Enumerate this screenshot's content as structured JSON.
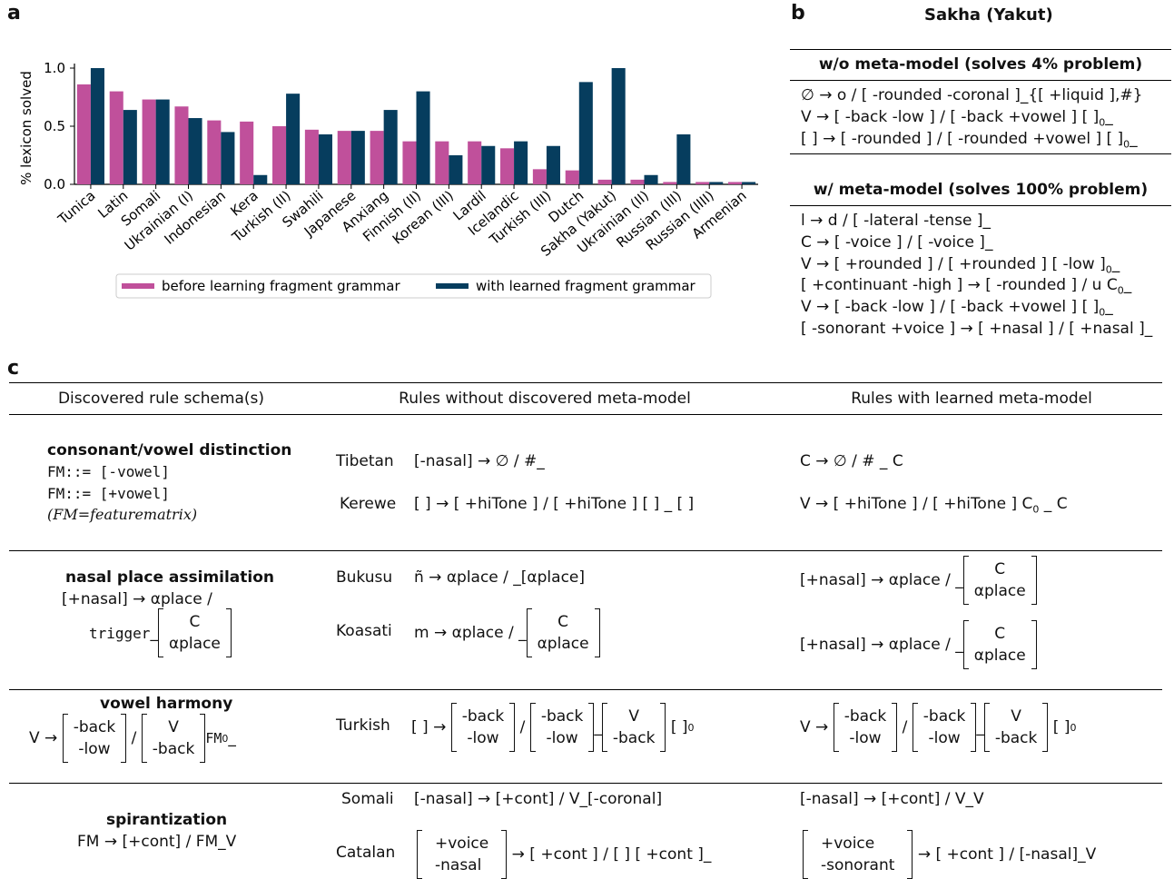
{
  "panel_a": {
    "label": "a",
    "chart_data": {
      "type": "bar",
      "ylabel": "% lexicon solved",
      "ylim": [
        0,
        1.0
      ],
      "yticks": [
        "0.0",
        "0.5",
        "1.0"
      ],
      "categories": [
        "Tunica",
        "Latin",
        "Somali",
        "Ukrainian (I)",
        "Indonesian",
        "Kera",
        "Turkish (II)",
        "Swahili",
        "Japanese",
        "Anxiang",
        "Finnish (II)",
        "Korean (III)",
        "Lardil",
        "Icelandic",
        "Turkish (III)",
        "Dutch",
        "Sakha (Yakut)",
        "Ukrainian (II)",
        "Russian (III)",
        "Russian (IIII)",
        "Armenian"
      ],
      "series": [
        {
          "name": "before learning fragment grammar",
          "color": "#c0509b",
          "values": [
            0.86,
            0.8,
            0.73,
            0.67,
            0.55,
            0.54,
            0.5,
            0.47,
            0.46,
            0.46,
            0.37,
            0.37,
            0.37,
            0.31,
            0.13,
            0.12,
            0.04,
            0.04,
            0.02,
            0.02,
            0.02
          ]
        },
        {
          "name": "with learned fragment grammar",
          "color": "#063d5e",
          "values": [
            1.0,
            0.64,
            0.73,
            0.57,
            0.45,
            0.08,
            0.78,
            0.43,
            0.46,
            0.64,
            0.8,
            0.25,
            0.33,
            0.37,
            0.33,
            0.88,
            1.0,
            0.08,
            0.43,
            0.02,
            0.02
          ]
        }
      ],
      "legend": "bottom"
    }
  },
  "panel_b": {
    "label": "b",
    "title": "Sakha (Yakut)",
    "without": {
      "header": "w/o meta-model (solves 4% problem)",
      "rules": [
        "∅ → o / [ -rounded -coronal ]_{[ +liquid ],#}",
        "V → [ -back -low ] / [ -back +vowel ] [ ]",
        "[ ] → [ -rounded ] / [ -rounded +vowel ] [ ]"
      ]
    },
    "with": {
      "header": "w/ meta-model (solves 100% problem)",
      "rules": [
        "l → d / [ -lateral -tense ]_",
        "C → [ -voice ] / [ -voice ]_",
        "V → [ +rounded ] / [ +rounded ] [ -low ]",
        "[ +continuant -high ] → [ -rounded ] / u C",
        "V → [ -back -low ] / [ -back +vowel ] [ ]",
        "[ -sonorant +voice ] → [ +nasal ] / [ +nasal ]_"
      ]
    },
    "subscript_zero": "0",
    "underscore": "_"
  },
  "panel_c": {
    "label": "c",
    "headers": [
      "Discovered rule schema(s)",
      "Rules without discovered meta-model",
      "Rules with learned meta-model"
    ],
    "sections": {
      "cv": {
        "title": "consonant/vowel distinction",
        "lines": [
          "FM::= [-vowel]",
          "FM::= [+vowel]",
          "(FM=featurematrix)"
        ],
        "rows": [
          {
            "lang": "Tibetan",
            "without": "[-nasal] → ∅ / #_",
            "with": "C → ∅ / # _ C"
          },
          {
            "lang": "Kerewe",
            "without": "[ ] → [ +hiTone ] / [ +hiTone ] [ ] _ [ ]",
            "with": "V → [ +hiTone ] / [ +hiTone ] C"
          }
        ]
      },
      "nasal": {
        "title": "nasal place assimilation",
        "line1": "[+nasal] → αplace /",
        "trigger": "trigger",
        "rows": [
          {
            "lang": "Bukusu",
            "without": "ñ → αplace / _[αplace]",
            "with_pre": "[+nasal] → αplace / _"
          },
          {
            "lang": "Koasati",
            "without_pre": "m → αplace / _",
            "with_pre": "[+nasal] → αplace / _"
          }
        ],
        "matrix": [
          "C",
          "αplace"
        ]
      },
      "harmony": {
        "title": "vowel harmony",
        "schema_pre": "V →",
        "m1": [
          "-back",
          "-low"
        ],
        "m2": [
          "V",
          "-back"
        ],
        "schema_tail": "FM",
        "lang": "Turkish",
        "without_pre": "[ ] →",
        "with_pre": "V →",
        "ma": [
          "-back",
          "-low"
        ],
        "mb": [
          "-back",
          "-low"
        ],
        "mc": [
          "V",
          "-back"
        ]
      },
      "spir": {
        "title": "spirantization",
        "schema": "FM → [+cont] / FM_V",
        "rows": [
          {
            "lang": "Somali",
            "without": "[-nasal] → [+cont] / V_[-coronal]",
            "with": "[-nasal] → [+cont] / V_V"
          },
          {
            "lang": "Catalan",
            "m_without": [
              "+voice",
              "-nasal"
            ],
            "without_tail": "→ [ +cont ] / [ ] [ +cont ]_",
            "m_with": [
              "+voice",
              "-sonorant"
            ],
            "with_tail": "→ [ +cont ] / [-nasal]_V"
          }
        ]
      }
    }
  }
}
